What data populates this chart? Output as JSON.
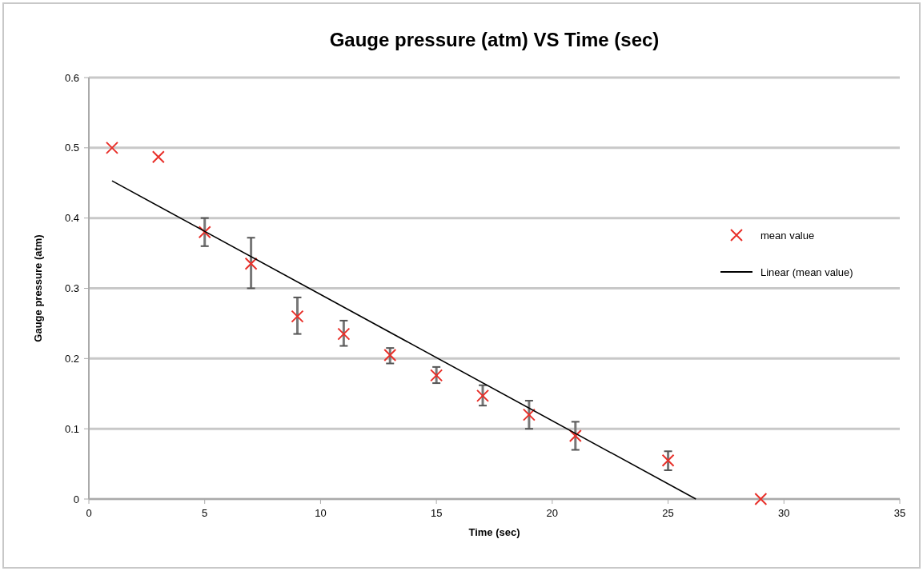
{
  "chart_data": {
    "type": "scatter",
    "title": "Gauge pressure (atm) VS Time (sec)",
    "xlabel": "Time (sec)",
    "ylabel": "Gauge pressure (atm)",
    "xlim": [
      0,
      35
    ],
    "xticks": [
      0,
      5,
      10,
      15,
      20,
      25,
      30,
      35
    ],
    "ylim": [
      0,
      0.6
    ],
    "yticks": [
      0,
      0.1,
      0.2,
      0.3,
      0.4,
      0.5,
      0.6
    ],
    "grid": "y",
    "legend": "right",
    "marker": "cross",
    "series": [
      {
        "name": "mean value",
        "color": "#e8302a",
        "x": [
          1,
          3,
          5,
          7,
          9,
          11,
          13,
          15,
          17,
          19,
          21,
          25,
          29
        ],
        "values": [
          0.5,
          0.487,
          0.38,
          0.335,
          0.26,
          0.235,
          0.205,
          0.176,
          0.147,
          0.12,
          0.09,
          0.055,
          0
        ],
        "errors": [
          null,
          null,
          [
            0.36,
            0.4
          ],
          [
            0.3,
            0.372
          ],
          [
            0.235,
            0.287
          ],
          [
            0.218,
            0.254
          ],
          [
            0.193,
            0.215
          ],
          [
            0.165,
            0.188
          ],
          [
            0.133,
            0.162
          ],
          [
            0.1,
            0.14
          ],
          [
            0.07,
            0.11
          ],
          [
            0.041,
            0.068
          ],
          null
        ]
      },
      {
        "name": "Linear (mean value)",
        "type": "line",
        "color": "#000000",
        "marker": "none",
        "x": [
          1,
          26.2
        ],
        "values": [
          0.453,
          0
        ]
      }
    ]
  }
}
